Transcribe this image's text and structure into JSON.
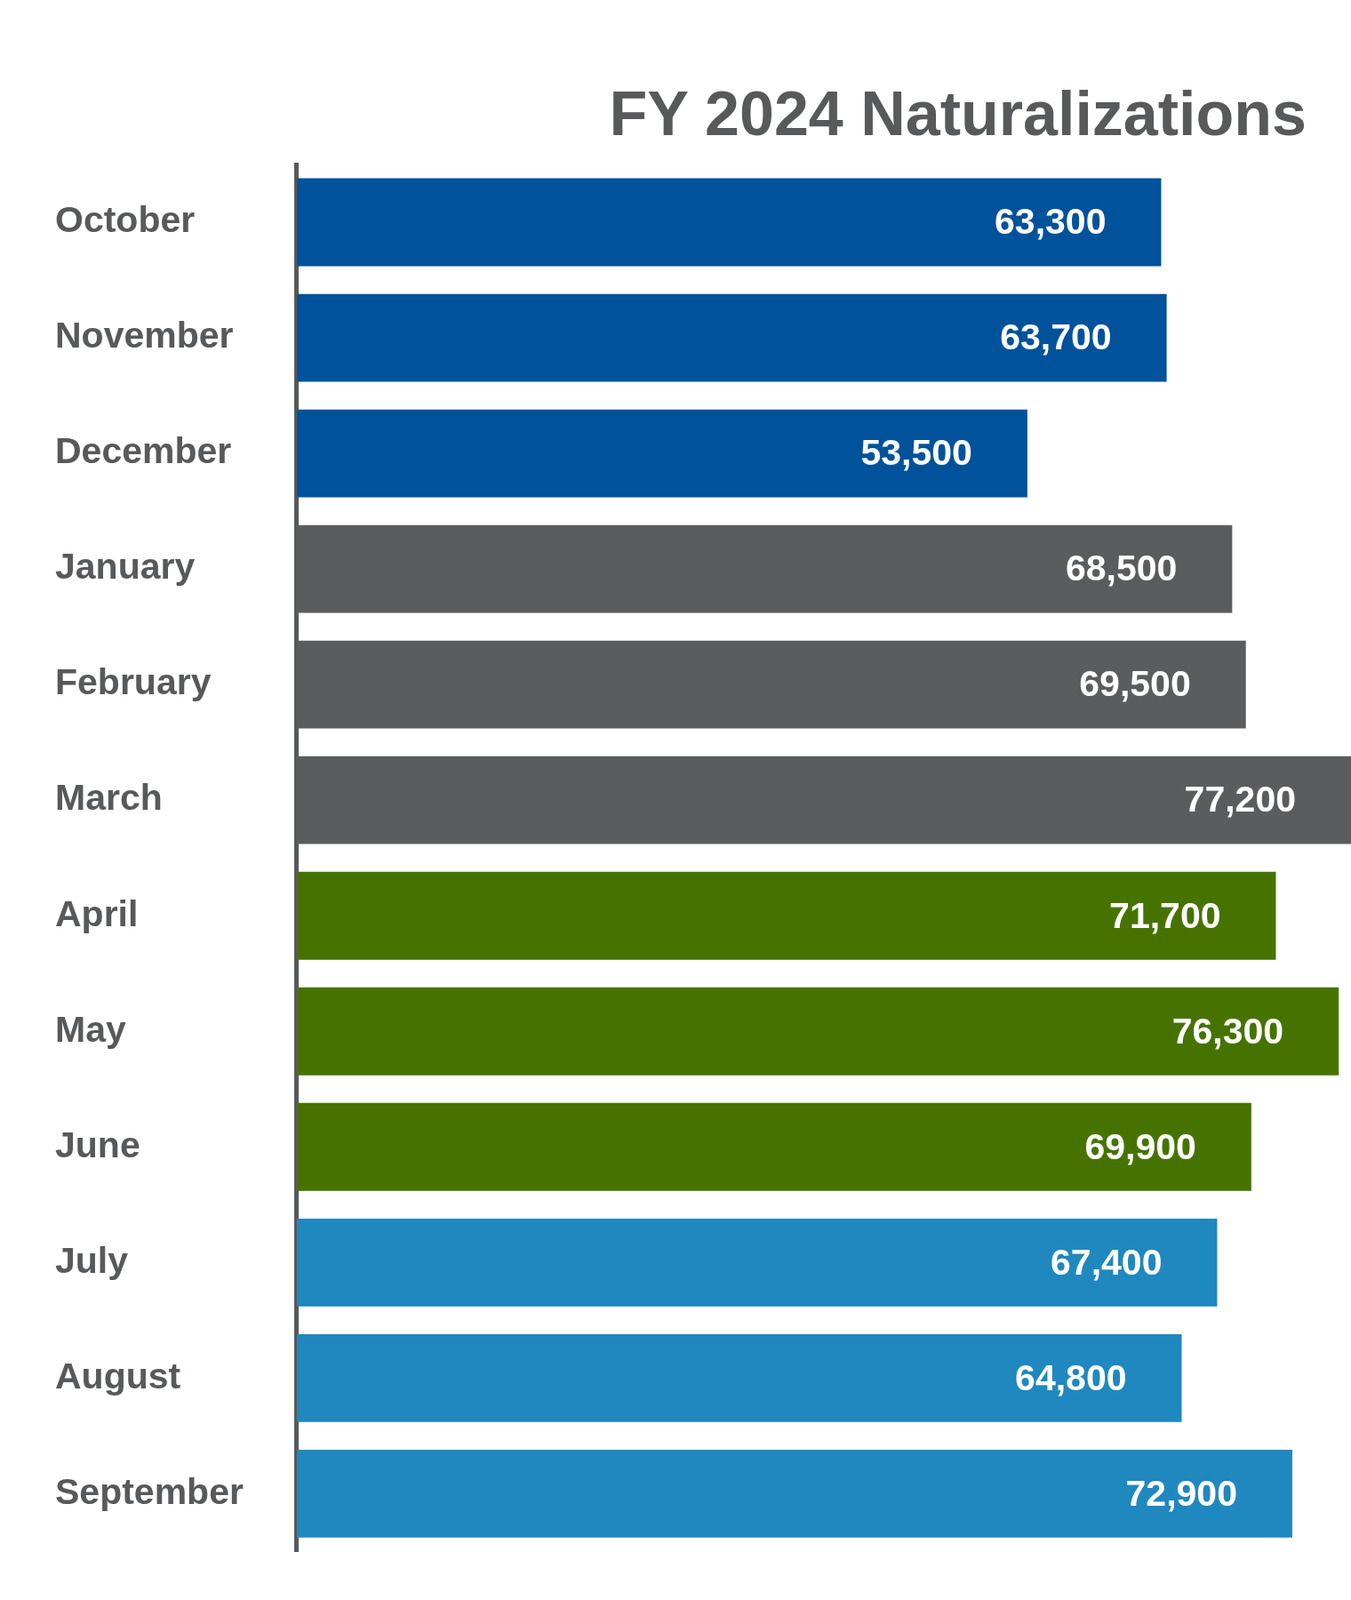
{
  "chart_data": {
    "type": "bar",
    "orientation": "horizontal",
    "title": "FY 2024 Naturalizations",
    "categories": [
      "October",
      "November",
      "December",
      "January",
      "February",
      "March",
      "April",
      "May",
      "June",
      "July",
      "August",
      "September"
    ],
    "values": [
      63300,
      63700,
      53500,
      68500,
      69500,
      77200,
      71700,
      76300,
      69900,
      67400,
      64800,
      72900
    ],
    "value_labels": [
      "63,300",
      "63,700",
      "53,500",
      "68,500",
      "69,500",
      "77,200",
      "71,700",
      "76,300",
      "69,900",
      "67,400",
      "64,800",
      "72,900"
    ],
    "colors": [
      "#00529b",
      "#00529b",
      "#00529b",
      "#5b5c5e",
      "#5b5c5e",
      "#5b5c5e",
      "#467300",
      "#467300",
      "#467300",
      "#1f88be",
      "#1f88be",
      "#1f88be"
    ],
    "xlim": [
      0,
      77200
    ],
    "grid": false,
    "data_labels": true,
    "tick_labels": "y"
  }
}
